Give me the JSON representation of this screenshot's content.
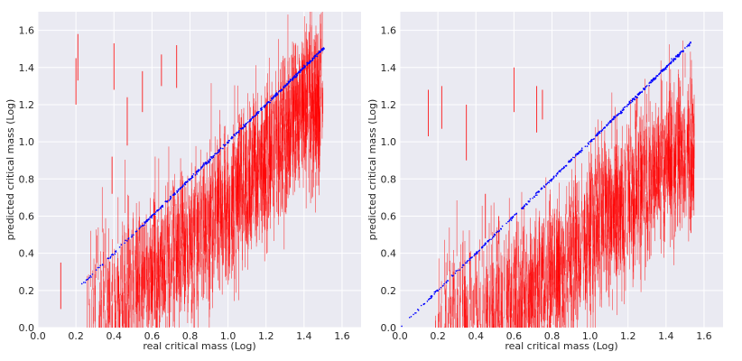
{
  "chart_data": [
    {
      "type": "scatter",
      "panel": "left",
      "title": "",
      "xlabel": "real critical mass (Log)",
      "ylabel": "predicted critical mass (Log)",
      "xlim": [
        0.0,
        1.7
      ],
      "ylim": [
        0.0,
        1.7
      ],
      "xticks": [
        "0.0",
        "0.2",
        "0.4",
        "0.6",
        "0.8",
        "1.0",
        "1.2",
        "1.4",
        "1.6"
      ],
      "yticks": [
        "0.0",
        "0.2",
        "0.4",
        "0.6",
        "0.8",
        "1.0",
        "1.2",
        "1.4",
        "1.6"
      ],
      "grid": true,
      "style": "seaborn-darkgrid",
      "colors": {
        "background": "#eaeaf2",
        "grid": "#ffffff",
        "points": "#0000ff",
        "errorbars": "#ff0000"
      },
      "series": [
        {
          "kind": "points",
          "description_of_trend": "predictions lie on diagonal y = x",
          "x_range": [
            0.18,
            1.51
          ],
          "slope": 1.0,
          "offset": 0.0
        },
        {
          "kind": "error_bars",
          "trend": {
            "center_at_x": [
              [
                0.3,
                0.05
              ],
              [
                0.6,
                0.3
              ],
              [
                0.9,
                0.55
              ],
              [
                1.2,
                0.9
              ],
              [
                1.4,
                1.2
              ]
            ]
          },
          "x_range": [
            0.25,
            1.5
          ],
          "outliers": [
            {
              "x": 0.12,
              "low": 0.1,
              "high": 0.35
            },
            {
              "x": 0.2,
              "low": 1.2,
              "high": 1.45
            },
            {
              "x": 0.21,
              "low": 1.33,
              "high": 1.58
            },
            {
              "x": 0.4,
              "low": 1.28,
              "high": 1.53
            },
            {
              "x": 0.47,
              "low": 0.98,
              "high": 1.24
            },
            {
              "x": 0.55,
              "low": 1.16,
              "high": 1.38
            },
            {
              "x": 0.65,
              "low": 1.3,
              "high": 1.47
            },
            {
              "x": 0.73,
              "low": 1.29,
              "high": 1.52
            },
            {
              "x": 0.39,
              "low": 0.72,
              "high": 0.92
            }
          ]
        }
      ]
    },
    {
      "type": "scatter",
      "panel": "right",
      "title": "",
      "xlabel": "real critical mass (Log)",
      "ylabel": "predicted critical mass (Log)",
      "xlim": [
        0.0,
        1.7
      ],
      "ylim": [
        0.0,
        1.7
      ],
      "xticks": [
        "0.0",
        "0.2",
        "0.4",
        "0.6",
        "0.8",
        "1.0",
        "1.2",
        "1.4",
        "1.6"
      ],
      "yticks": [
        "0.0",
        "0.2",
        "0.4",
        "0.6",
        "0.8",
        "1.0",
        "1.2",
        "1.4",
        "1.6"
      ],
      "grid": true,
      "style": "seaborn-darkgrid",
      "colors": {
        "background": "#eaeaf2",
        "grid": "#ffffff",
        "points": "#0000ff",
        "errorbars": "#ff0000"
      },
      "series": [
        {
          "kind": "points",
          "description_of_trend": "predictions lie on diagonal y = x",
          "x_range": [
            0.0,
            1.53
          ],
          "slope": 1.0,
          "offset": 0.0
        },
        {
          "kind": "error_bars",
          "trend": {
            "center_at_x": [
              [
                0.3,
                0.03
              ],
              [
                0.6,
                0.12
              ],
              [
                0.9,
                0.35
              ],
              [
                1.2,
                0.7
              ],
              [
                1.45,
                0.95
              ]
            ]
          },
          "x_range": [
            0.18,
            1.55
          ],
          "outliers": [
            {
              "x": 0.15,
              "low": 1.03,
              "high": 1.28
            },
            {
              "x": 0.22,
              "low": 1.07,
              "high": 1.3
            },
            {
              "x": 0.35,
              "low": 0.9,
              "high": 1.2
            },
            {
              "x": 0.45,
              "low": 0.48,
              "high": 0.72
            },
            {
              "x": 0.52,
              "low": 0.45,
              "high": 0.6
            },
            {
              "x": 0.6,
              "low": 1.16,
              "high": 1.4
            },
            {
              "x": 0.72,
              "low": 1.05,
              "high": 1.3
            },
            {
              "x": 0.75,
              "low": 1.12,
              "high": 1.28
            }
          ]
        }
      ]
    }
  ]
}
